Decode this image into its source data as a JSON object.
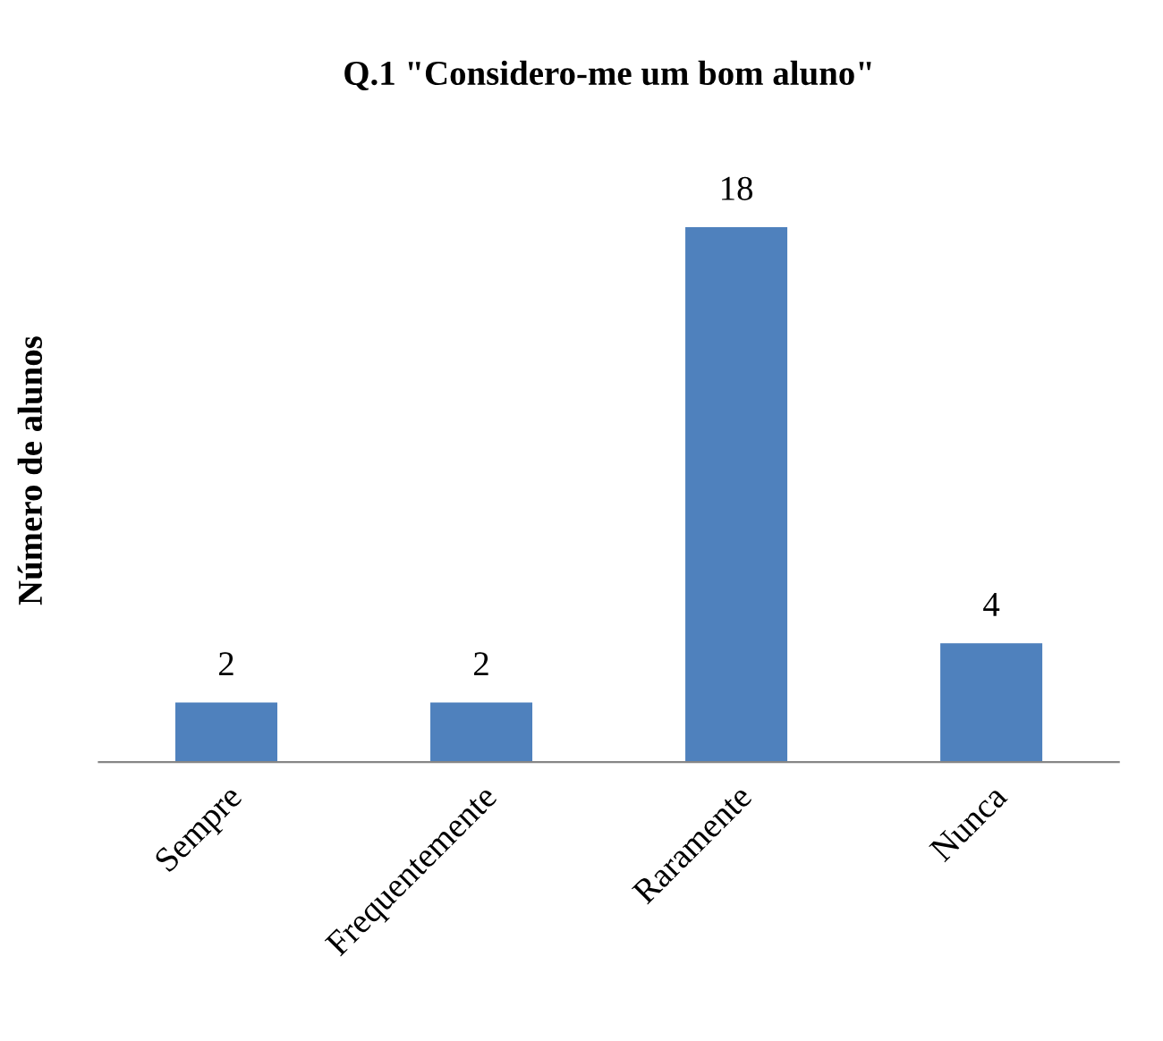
{
  "chart_data": {
    "type": "bar",
    "title": "Q.1 \"Considero-me um bom aluno\"",
    "ylabel": "Número de alunos",
    "categories": [
      "Sempre",
      "Frequentemente",
      "Raramente",
      "Nunca"
    ],
    "values": [
      2,
      2,
      18,
      4
    ],
    "color": "#4f81bd",
    "data_labels": true,
    "grid": false,
    "legend": false,
    "tick_labels": "x"
  }
}
